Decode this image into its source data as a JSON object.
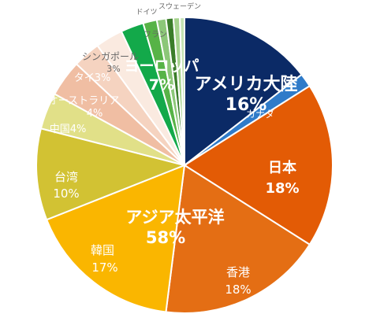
{
  "chart_data": {
    "type": "pie",
    "title": "",
    "start": "12 o'clock",
    "direction": "clockwise",
    "slices": [
      {
        "label": "アメリカ大陸",
        "pct_label": "16%",
        "value": 14.5,
        "color": "#0b2a66",
        "label_color": "#ffffff",
        "bold": true
      },
      {
        "label": "カナダ",
        "value": 1.5,
        "color": "#2f7bc9",
        "label_color": "#ffffff"
      },
      {
        "label": "日本",
        "pct_label": "18%",
        "value": 18,
        "color": "#e35b05",
        "label_color": "#ffffff",
        "bold": true
      },
      {
        "label": "香港",
        "pct_label": "18%",
        "value": 18,
        "color": "#e46e14",
        "label_color": "#ffffff"
      },
      {
        "label": "韓国",
        "pct_label": "17%",
        "value": 17,
        "color": "#fab600",
        "label_color": "#ffffff"
      },
      {
        "label": "台湾",
        "pct_label": "10%",
        "value": 10,
        "color": "#d2c233",
        "label_color": "#ffffff"
      },
      {
        "label": "中国4%",
        "value": 4,
        "color": "#e1e088",
        "label_color": "#ffffff"
      },
      {
        "label": "オーストラリア",
        "pct_label": "4%",
        "value": 4,
        "color": "#f0bea3",
        "label_color": "#ffffff"
      },
      {
        "label": "タイ3%",
        "value": 3,
        "color": "#f5d3c0",
        "label_color": "#ffffff"
      },
      {
        "label": "シンガポール",
        "pct_label": "3%",
        "value": 3,
        "color": "#faeae0",
        "label_color": "#666666"
      },
      {
        "label": "",
        "value": 2.5,
        "color": "#13a94a"
      },
      {
        "label": "フラン",
        "value": 1.5,
        "color": "#57b347",
        "label_color": "#666666"
      },
      {
        "label": "",
        "value": 1.0,
        "color": "#8cc778"
      },
      {
        "label": "ドイツ",
        "value": 0.8,
        "color": "#3b7d2a",
        "label_color": "#666666"
      },
      {
        "label": "",
        "value": 0.7,
        "color": "#a5d38d"
      },
      {
        "label": "スウェーデン",
        "value": 0.5,
        "color": "#c5e3b3",
        "label_color": "#666666"
      }
    ],
    "group_labels": [
      {
        "label": "アジア太平洋",
        "pct_label": "58%",
        "color": "#ffffff"
      },
      {
        "label": "ヨーロッパ",
        "pct_label": "7%",
        "color": "#ffffff"
      }
    ]
  }
}
